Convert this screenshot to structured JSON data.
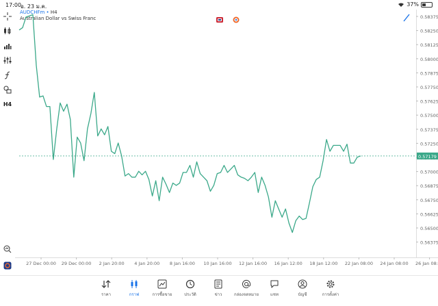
{
  "status": {
    "time": "17:00",
    "date": "อ. 23 ม.ค.",
    "battery": "37%",
    "battery_level": 0.37
  },
  "symbol": {
    "name": "AUDCHFm",
    "timeframe": "H4",
    "separator": "•",
    "description": "Australian Dollar vs Swiss Franc"
  },
  "toolbar": [
    {
      "name": "crosshair-icon"
    },
    {
      "name": "candlestick-icon"
    },
    {
      "name": "indicators-icon"
    },
    {
      "name": "settings-sliders-icon"
    },
    {
      "name": "function-icon"
    },
    {
      "name": "shapes-icon"
    },
    {
      "name": "timeframe-button",
      "label": "H4"
    }
  ],
  "chart_data": {
    "type": "line",
    "current_price_label": "0.57179",
    "current_price": 0.5718,
    "ylim": [
      0.564,
      0.584
    ],
    "y_ticks": [
      "0.58375",
      "0.58250",
      "0.58125",
      "0.58000",
      "0.57875",
      "0.57750",
      "0.57625",
      "0.57500",
      "0.57375",
      "0.57250",
      "0.57125",
      "0.57000",
      "0.56875",
      "0.56750",
      "0.56625",
      "0.56500",
      "0.56375"
    ],
    "x_ticks": [
      "27 Dec 00:00",
      "29 Dec 00:00",
      "2 Jan 20:00",
      "4 Jan 20:00",
      "8 Jan 16:00",
      "10 Jan 16:00",
      "12 Jan 16:00",
      "16 Jan 12:00",
      "18 Jan 12:00",
      "22 Jan 08:00",
      "24 Jan 08:00",
      "26 Jan 08:00"
    ],
    "line_color": "#3aa889",
    "values": [
      0.5825,
      0.5827,
      0.5836,
      0.5837,
      0.5838,
      0.5795,
      0.5768,
      0.5769,
      0.576,
      0.576,
      0.5715,
      0.5741,
      0.5763,
      0.5756,
      0.5762,
      0.5749,
      0.57,
      0.5734,
      0.5729,
      0.5714,
      0.5741,
      0.5754,
      0.5772,
      0.5735,
      0.5741,
      0.5736,
      0.5743,
      0.5722,
      0.572,
      0.5729,
      0.5718,
      0.5701,
      0.5703,
      0.57,
      0.57,
      0.5705,
      0.5702,
      0.5705,
      0.5698,
      0.5684,
      0.5697,
      0.568,
      0.57,
      0.5694,
      0.5687,
      0.5695,
      0.5693,
      0.5695,
      0.5704,
      0.5704,
      0.571,
      0.57,
      0.5713,
      0.5703,
      0.57,
      0.5697,
      0.5688,
      0.5693,
      0.5703,
      0.5704,
      0.571,
      0.5704,
      0.5707,
      0.571,
      0.5702,
      0.57,
      0.5699,
      0.5697,
      0.57,
      0.5704,
      0.5687,
      0.57,
      0.5693,
      0.5683,
      0.5666,
      0.568,
      0.5673,
      0.5666,
      0.5673,
      0.5661,
      0.5653,
      0.5663,
      0.5667,
      0.5664,
      0.5665,
      0.5678,
      0.5692,
      0.5698,
      0.57,
      0.5714,
      0.5732,
      0.5722,
      0.5727,
      0.5727,
      0.5727,
      0.5722,
      0.5728,
      0.5712,
      0.5712,
      0.5717,
      0.5718
    ]
  },
  "flags": [
    {
      "name": "au-flag-icon",
      "color": "#cc2936"
    },
    {
      "name": "ch-flag-icon",
      "color": "#ee6b2f"
    }
  ],
  "tabs": [
    {
      "name": "tab-quotes",
      "label": "ราคา",
      "icon": "quotes-icon"
    },
    {
      "name": "tab-chart",
      "label": "กราฟ",
      "icon": "chart-icon",
      "active": true
    },
    {
      "name": "tab-trade",
      "label": "การซื้อขาย",
      "icon": "trade-icon"
    },
    {
      "name": "tab-history",
      "label": "ประวัติ",
      "icon": "history-icon"
    },
    {
      "name": "tab-news",
      "label": "ข่าว",
      "icon": "news-icon"
    },
    {
      "name": "tab-mailbox",
      "label": "กล่องจดหมาย",
      "icon": "mailbox-icon"
    },
    {
      "name": "tab-chat",
      "label": "แชท",
      "icon": "chat-icon"
    },
    {
      "name": "tab-account",
      "label": "บัญชี",
      "icon": "account-icon"
    },
    {
      "name": "tab-settings",
      "label": "การตั้งค่า",
      "icon": "settings-icon"
    }
  ],
  "accent_color": "#1a73e8"
}
